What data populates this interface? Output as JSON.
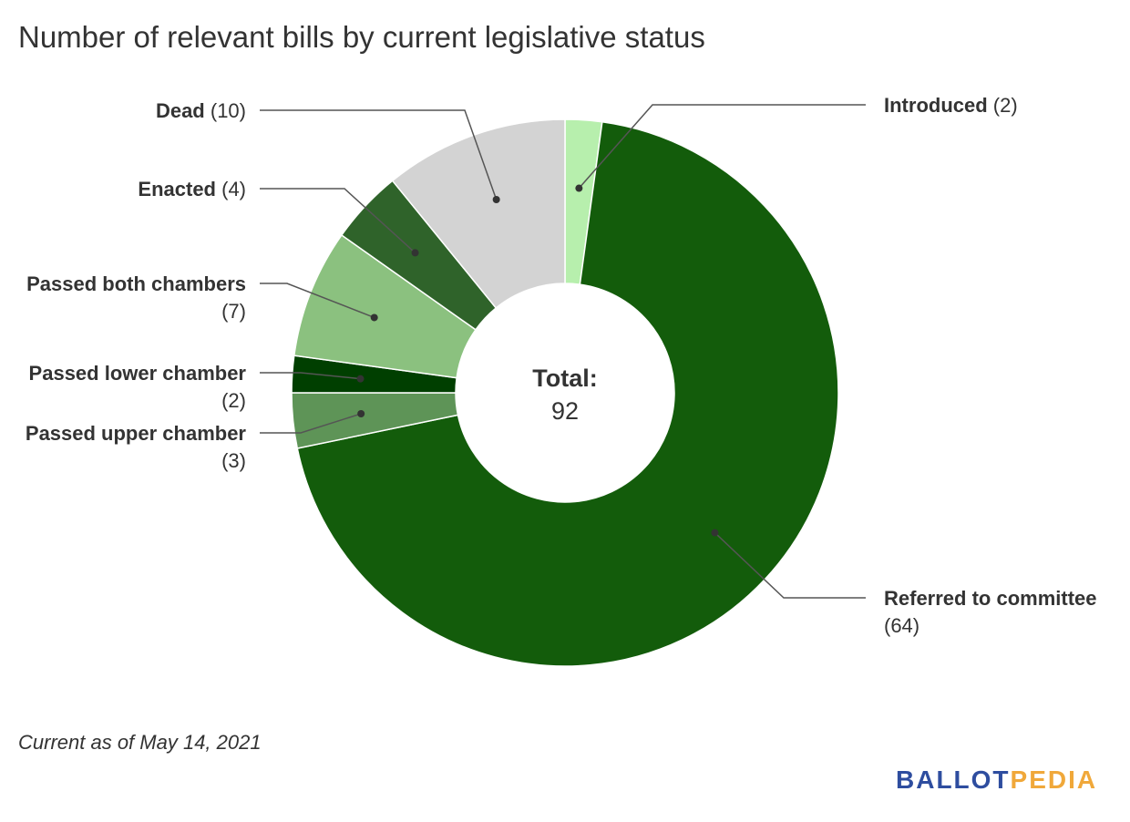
{
  "title": "Number of relevant bills by current legislative status",
  "footnote": "Current as of May 14, 2021",
  "logo": {
    "part1": "BALLOT",
    "part2": "PEDIA"
  },
  "chart_data": {
    "type": "pie",
    "variant": "donut",
    "title": "Number of relevant bills by current legislative status",
    "center_label": {
      "title": "Total:",
      "value": "92"
    },
    "slices": [
      {
        "name": "Introduced",
        "value": 2,
        "value_label": "(2)",
        "color": "#b7efad"
      },
      {
        "name": "Referred to committee",
        "value": 64,
        "value_label": "(64)",
        "color": "#135c0b"
      },
      {
        "name": "Passed upper chamber",
        "value": 3,
        "value_label": "(3)",
        "color": "#5e9457"
      },
      {
        "name": "Passed lower chamber",
        "value": 2,
        "value_label": "(2)",
        "color": "#003f00"
      },
      {
        "name": "Passed both chambers",
        "value": 7,
        "value_label": "(7)",
        "color": "#8bc17f"
      },
      {
        "name": "Enacted",
        "value": 4,
        "value_label": "(4)",
        "color": "#2f632a"
      },
      {
        "name": "Dead",
        "value": 10,
        "value_label": "(10)",
        "color": "#d3d3d3"
      }
    ]
  }
}
